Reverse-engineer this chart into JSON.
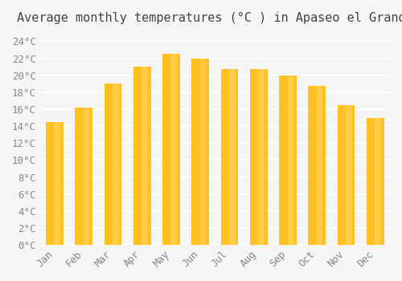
{
  "title": "Average monthly temperatures (°C ) in Apaseo el Grande",
  "months": [
    "Jan",
    "Feb",
    "Mar",
    "Apr",
    "May",
    "Jun",
    "Jul",
    "Aug",
    "Sep",
    "Oct",
    "Nov",
    "Dec"
  ],
  "values": [
    14.5,
    16.2,
    19.0,
    21.0,
    22.5,
    22.0,
    20.7,
    20.7,
    20.0,
    18.7,
    16.5,
    15.0
  ],
  "bar_color_main": "#FFC020",
  "bar_color_light": "#FFD870",
  "background_color": "#F5F5F5",
  "ylim": [
    0,
    25
  ],
  "ytick_step": 2,
  "title_fontsize": 11,
  "tick_fontsize": 9,
  "grid_color": "#FFFFFF",
  "grid_linewidth": 1.2
}
